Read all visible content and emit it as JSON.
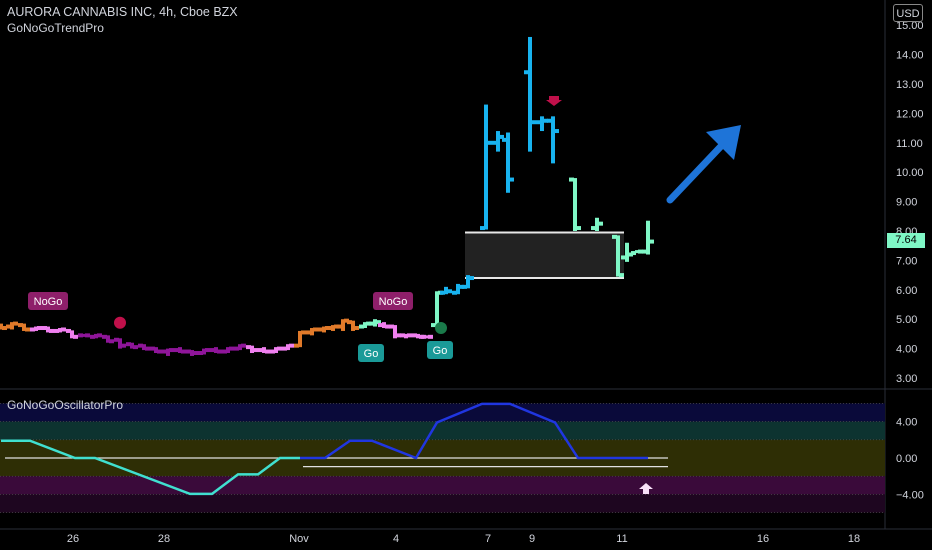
{
  "header": {
    "title": "AURORA CANNABIS INC, 4h, Cboe BZX",
    "indicator": "GoNoGoTrendPro",
    "currency_button": "USD"
  },
  "oscillator": {
    "title": "GoNoGoOscillatorPro",
    "ticks": [
      "4.00",
      "0.00",
      "−4.00"
    ]
  },
  "colors": {
    "background": "#000000",
    "go_strong": "#18b3ef",
    "go_weak": "#7ff7c6",
    "nogo_strong": "#8e1599",
    "nogo_weak": "#f07fef",
    "amber": "#e17a2a",
    "arrow": "#1e74d8"
  },
  "chart_data": {
    "type": "ohlc",
    "price_ticks": [
      "15.00",
      "14.00",
      "13.00",
      "12.00",
      "11.00",
      "10.00",
      "9.00",
      "8.00",
      "7.00",
      "6.00",
      "5.00",
      "4.00",
      "3.00"
    ],
    "last_price": "7.64",
    "x_ticks": [
      "26",
      "28",
      "Nov",
      "4",
      "7",
      "9",
      "11",
      "16",
      "18"
    ],
    "labels": [
      "NoGo",
      "NoGo",
      "Go",
      "Go"
    ],
    "bars": [
      {
        "x": 1,
        "o": 4.8,
        "h": 4.85,
        "l": 4.65,
        "c": 4.7,
        "color": "amber"
      },
      {
        "x": 12,
        "o": 4.75,
        "h": 4.9,
        "l": 4.65,
        "c": 4.85,
        "color": "amber"
      },
      {
        "x": 24,
        "o": 4.8,
        "h": 4.85,
        "l": 4.6,
        "c": 4.65,
        "color": "amber"
      },
      {
        "x": 36,
        "o": 4.65,
        "h": 4.75,
        "l": 4.6,
        "c": 4.7,
        "color": "nogo_weak"
      },
      {
        "x": 48,
        "o": 4.7,
        "h": 4.75,
        "l": 4.55,
        "c": 4.6,
        "color": "nogo_weak"
      },
      {
        "x": 60,
        "o": 4.6,
        "h": 4.7,
        "l": 4.55,
        "c": 4.65,
        "color": "nogo_weak"
      },
      {
        "x": 72,
        "o": 4.6,
        "h": 4.62,
        "l": 4.35,
        "c": 4.4,
        "color": "nogo_weak"
      },
      {
        "x": 84,
        "o": 4.45,
        "h": 4.5,
        "l": 4.4,
        "c": 4.45,
        "color": "nogo_strong"
      },
      {
        "x": 96,
        "o": 4.4,
        "h": 4.5,
        "l": 4.35,
        "c": 4.45,
        "color": "nogo_strong"
      },
      {
        "x": 108,
        "o": 4.4,
        "h": 4.45,
        "l": 4.2,
        "c": 4.25,
        "color": "nogo_strong"
      },
      {
        "x": 120,
        "o": 4.3,
        "h": 4.35,
        "l": 4.0,
        "c": 4.1,
        "color": "nogo_strong"
      },
      {
        "x": 132,
        "o": 4.15,
        "h": 4.2,
        "l": 4.0,
        "c": 4.05,
        "color": "nogo_strong"
      },
      {
        "x": 144,
        "o": 4.1,
        "h": 4.15,
        "l": 3.95,
        "c": 4.0,
        "color": "nogo_strong"
      },
      {
        "x": 156,
        "o": 4.0,
        "h": 4.05,
        "l": 3.85,
        "c": 3.9,
        "color": "nogo_strong"
      },
      {
        "x": 168,
        "o": 3.9,
        "h": 4.0,
        "l": 3.75,
        "c": 3.95,
        "color": "nogo_strong"
      },
      {
        "x": 180,
        "o": 3.95,
        "h": 4.05,
        "l": 3.85,
        "c": 3.9,
        "color": "nogo_strong"
      },
      {
        "x": 192,
        "o": 3.9,
        "h": 3.95,
        "l": 3.75,
        "c": 3.85,
        "color": "nogo_strong"
      },
      {
        "x": 204,
        "o": 3.85,
        "h": 4.0,
        "l": 3.8,
        "c": 3.95,
        "color": "nogo_strong"
      },
      {
        "x": 216,
        "o": 3.95,
        "h": 4.05,
        "l": 3.85,
        "c": 3.9,
        "color": "nogo_strong"
      },
      {
        "x": 228,
        "o": 3.9,
        "h": 4.05,
        "l": 3.85,
        "c": 4.0,
        "color": "nogo_strong"
      },
      {
        "x": 240,
        "o": 4.0,
        "h": 4.15,
        "l": 3.95,
        "c": 4.1,
        "color": "nogo_strong"
      },
      {
        "x": 252,
        "o": 4.05,
        "h": 4.1,
        "l": 3.85,
        "c": 3.95,
        "color": "nogo_weak"
      },
      {
        "x": 264,
        "o": 3.95,
        "h": 4.05,
        "l": 3.85,
        "c": 3.9,
        "color": "nogo_weak"
      },
      {
        "x": 276,
        "o": 3.9,
        "h": 4.05,
        "l": 3.85,
        "c": 4.0,
        "color": "nogo_weak"
      },
      {
        "x": 288,
        "o": 4.0,
        "h": 4.15,
        "l": 3.95,
        "c": 4.1,
        "color": "nogo_weak"
      },
      {
        "x": 300,
        "o": 4.1,
        "h": 4.6,
        "l": 4.05,
        "c": 4.55,
        "color": "amber"
      },
      {
        "x": 312,
        "o": 4.55,
        "h": 4.7,
        "l": 4.45,
        "c": 4.65,
        "color": "amber"
      },
      {
        "x": 324,
        "o": 4.65,
        "h": 4.75,
        "l": 4.55,
        "c": 4.7,
        "color": "amber"
      },
      {
        "x": 333,
        "o": 4.7,
        "h": 4.8,
        "l": 4.6,
        "c": 4.75,
        "color": "amber"
      },
      {
        "x": 343,
        "o": 4.75,
        "h": 5.0,
        "l": 4.6,
        "c": 4.95,
        "color": "amber"
      },
      {
        "x": 353,
        "o": 4.9,
        "h": 4.95,
        "l": 4.6,
        "c": 4.7,
        "color": "amber"
      },
      {
        "x": 365,
        "o": 4.75,
        "h": 4.9,
        "l": 4.7,
        "c": 4.85,
        "color": "go_weak"
      },
      {
        "x": 375,
        "o": 4.85,
        "h": 5.0,
        "l": 4.75,
        "c": 4.9,
        "color": "go_weak"
      },
      {
        "x": 384,
        "o": 4.8,
        "h": 4.9,
        "l": 4.7,
        "c": 4.75,
        "color": "nogo_weak"
      },
      {
        "x": 395,
        "o": 4.75,
        "h": 4.8,
        "l": 4.35,
        "c": 4.45,
        "color": "nogo_weak"
      },
      {
        "x": 406,
        "o": 4.45,
        "h": 4.5,
        "l": 4.35,
        "c": 4.45,
        "color": "nogo_weak"
      },
      {
        "x": 418,
        "o": 4.45,
        "h": 4.5,
        "l": 4.35,
        "c": 4.4,
        "color": "nogo_weak"
      },
      {
        "x": 427,
        "o": 4.4,
        "h": 4.45,
        "l": 4.35,
        "c": 4.4,
        "color": "nogo_weak"
      },
      {
        "x": 437,
        "o": 4.8,
        "h": 5.95,
        "l": 4.75,
        "c": 5.9,
        "color": "go_weak"
      },
      {
        "x": 446,
        "o": 5.9,
        "h": 6.1,
        "l": 5.85,
        "c": 5.95,
        "color": "go_strong"
      },
      {
        "x": 458,
        "o": 5.9,
        "h": 6.2,
        "l": 5.85,
        "c": 6.1,
        "color": "go_strong"
      },
      {
        "x": 468,
        "o": 6.1,
        "h": 6.5,
        "l": 6.05,
        "c": 6.4,
        "color": "go_strong"
      },
      {
        "x": 486,
        "o": 8.1,
        "h": 12.3,
        "l": 8.05,
        "c": 11.0,
        "color": "go_strong"
      },
      {
        "x": 498,
        "o": 11.0,
        "h": 11.4,
        "l": 10.7,
        "c": 11.2,
        "color": "go_strong"
      },
      {
        "x": 508,
        "o": 11.1,
        "h": 11.35,
        "l": 9.3,
        "c": 9.75,
        "color": "go_strong"
      },
      {
        "x": 530,
        "o": 13.4,
        "h": 14.6,
        "l": 10.7,
        "c": 11.7,
        "color": "go_strong"
      },
      {
        "x": 542,
        "o": 11.7,
        "h": 11.9,
        "l": 11.4,
        "c": 11.75,
        "color": "go_strong"
      },
      {
        "x": 553,
        "o": 11.75,
        "h": 11.9,
        "l": 10.3,
        "c": 11.4,
        "color": "go_strong"
      },
      {
        "x": 575,
        "o": 9.75,
        "h": 9.8,
        "l": 8.0,
        "c": 8.1,
        "color": "go_weak"
      },
      {
        "x": 597,
        "o": 8.1,
        "h": 8.45,
        "l": 8.0,
        "c": 8.25,
        "color": "go_weak"
      },
      {
        "x": 618,
        "o": 7.8,
        "h": 7.85,
        "l": 6.45,
        "c": 6.5,
        "color": "go_weak"
      },
      {
        "x": 627,
        "o": 7.1,
        "h": 7.6,
        "l": 6.95,
        "c": 7.2,
        "color": "go_weak"
      },
      {
        "x": 637,
        "o": 7.25,
        "h": 7.35,
        "l": 7.25,
        "c": 7.3,
        "color": "go_weak"
      },
      {
        "x": 648,
        "o": 7.3,
        "h": 8.35,
        "l": 7.2,
        "c": 7.64,
        "color": "go_weak"
      }
    ],
    "box": {
      "top": 7.95,
      "bottom": 6.4
    },
    "oscillator_series": [
      {
        "x": 1,
        "y": 1.9
      },
      {
        "x": 30,
        "y": 1.9
      },
      {
        "x": 75,
        "y": 0.0
      },
      {
        "x": 95,
        "y": 0.0
      },
      {
        "x": 190,
        "y": -3.95
      },
      {
        "x": 212,
        "y": -3.95
      },
      {
        "x": 238,
        "y": -1.8
      },
      {
        "x": 258,
        "y": -1.8
      },
      {
        "x": 280,
        "y": 0.0
      },
      {
        "x": 325,
        "y": 0.0
      },
      {
        "x": 350,
        "y": 1.9
      },
      {
        "x": 372,
        "y": 1.9
      },
      {
        "x": 416,
        "y": 0.0
      },
      {
        "x": 437,
        "y": 3.9
      },
      {
        "x": 482,
        "y": 5.95
      },
      {
        "x": 510,
        "y": 5.95
      },
      {
        "x": 555,
        "y": 3.9
      },
      {
        "x": 578,
        "y": 0.0
      },
      {
        "x": 648,
        "y": 0.0
      }
    ],
    "oscillator_range": [
      -6.0,
      6.0
    ]
  }
}
